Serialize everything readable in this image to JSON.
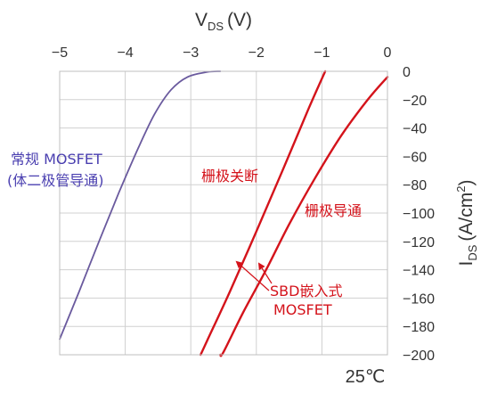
{
  "chart_data": {
    "type": "line",
    "title": "",
    "xlabel": "V",
    "xlabel_sub": "DS",
    "xlabel_unit": "(V)",
    "ylabel": "I",
    "ylabel_sub": "DS",
    "ylabel_unit": "(A/cm",
    "ylabel_sup": "2",
    "ylabel_close": ")",
    "xlim": [
      -5,
      0
    ],
    "ylim": [
      -200,
      0
    ],
    "x_ticks": [
      -5,
      -4,
      -3,
      -2,
      -1,
      0
    ],
    "y_ticks": [
      0,
      -20,
      -40,
      -60,
      -80,
      -100,
      -120,
      -140,
      -160,
      -180,
      -200
    ],
    "x_tick_labels": [
      "−5",
      "−4",
      "−3",
      "−2",
      "−1",
      "0"
    ],
    "y_tick_labels": [
      "0",
      "−20",
      "−40",
      "−60",
      "−80",
      "−100",
      "−120",
      "−140",
      "−160",
      "−180",
      "−200"
    ],
    "grid": true,
    "temperature_label": "25℃",
    "series": [
      {
        "name": "常规 MOSFET",
        "color": "#6a5a9e",
        "points": [
          [
            -5.0,
            -189
          ],
          [
            -4.7,
            -155
          ],
          [
            -4.4,
            -120
          ],
          [
            -4.1,
            -86
          ],
          [
            -3.8,
            -54
          ],
          [
            -3.55,
            -30
          ],
          [
            -3.3,
            -13
          ],
          [
            -3.05,
            -4
          ],
          [
            -2.75,
            -0.5
          ],
          [
            -2.55,
            0
          ]
        ]
      },
      {
        "name": "栅极关断",
        "color": "#d4131b",
        "points": [
          [
            -0.95,
            0
          ],
          [
            -1.2,
            -26
          ],
          [
            -1.6,
            -70
          ],
          [
            -2.0,
            -113
          ],
          [
            -2.4,
            -155
          ],
          [
            -2.75,
            -190
          ],
          [
            -2.85,
            -200
          ]
        ]
      },
      {
        "name": "栅极导通",
        "color": "#d4131b",
        "points": [
          [
            0.0,
            -4
          ],
          [
            -0.3,
            -20
          ],
          [
            -0.7,
            -45
          ],
          [
            -1.1,
            -75
          ],
          [
            -1.5,
            -108
          ],
          [
            -1.85,
            -140
          ],
          [
            -2.2,
            -170
          ],
          [
            -2.5,
            -198
          ],
          [
            -2.55,
            -200
          ]
        ]
      }
    ]
  },
  "annotations": {
    "standard_line1": "常规 MOSFET",
    "standard_line2": "(体二极管导通)",
    "gate_off": "栅极关断",
    "gate_on": "栅极导通",
    "sbd_line1": "SBD嵌入式",
    "sbd_line2": "MOSFET",
    "standard_color": "#4a3fb0",
    "red_color": "#d4131b"
  }
}
